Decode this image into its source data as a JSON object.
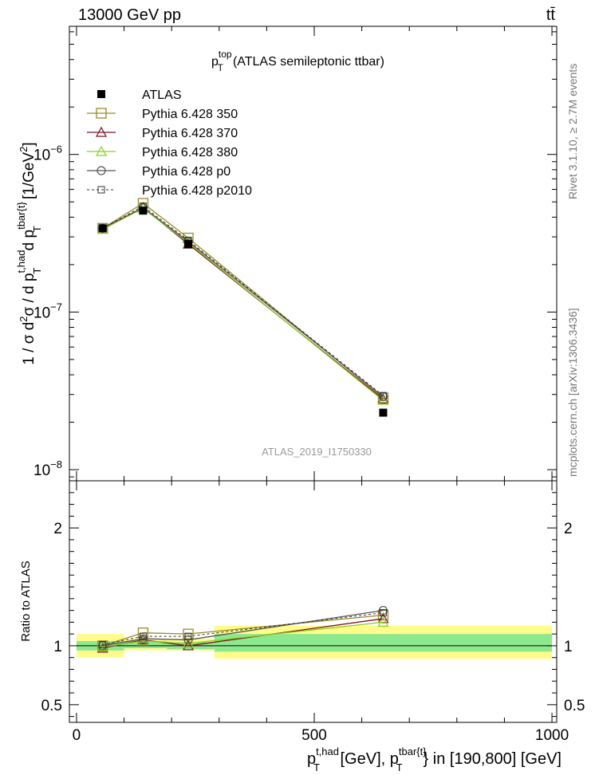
{
  "header": {
    "left_label": "13000 GeV pp",
    "right_label": "tt̄"
  },
  "title": {
    "main": "p",
    "sup": "top",
    "sub": "T",
    "rest": "(ATLAS semileptonic ttbar)"
  },
  "side_labels": {
    "rivet": "Rivet 3.1.10, ≥ 2.7M events",
    "mcplots": "mcplots.cern.ch [arXiv:1306.3436]"
  },
  "watermark": "ATLAS_2019_I1750330",
  "y_label_main": {
    "prefix": "1 / σ d",
    "p1": "2",
    "mid": "σ / d p",
    "sup1": "t,had",
    "sub1": "T",
    "mid2": " d p",
    "sup2": "tbar{t}",
    "sub2": "T",
    "unit": " [1/GeV",
    "unit_sup": "2",
    "unit_end": "]"
  },
  "y_label_ratio": "Ratio to ATLAS",
  "x_label": {
    "a": "p",
    "sup1": "t,had",
    "sub1": "T",
    "b": " [GeV], p",
    "sup2": "tbar{t}",
    "sub2": "T",
    "c": "} in [190,800] [GeV]"
  },
  "colors": {
    "atlas": "#000000",
    "p350": "#9a8a28",
    "p370": "#7a1020",
    "p380": "#88d020",
    "p0": "#555555",
    "p2010": "#333333",
    "band_stat": "#8ee88e",
    "band_total": "#fffc8c"
  },
  "chart_data": [
    {
      "type": "scatter",
      "panel": "main",
      "xlim": [
        -15,
        1010
      ],
      "ylim": [
        8.5e-09,
        6.5e-06
      ],
      "y_scale": "log",
      "y_ticks": [
        {
          "value": 1e-06,
          "base": "10",
          "exp": "−6"
        },
        {
          "value": 1e-07,
          "base": "10",
          "exp": "−7"
        },
        {
          "value": 1e-08,
          "base": "10",
          "exp": "−8"
        }
      ],
      "x": [
        55,
        140,
        235,
        645
      ],
      "series": [
        {
          "name": "ATLAS",
          "key": "atlas",
          "marker": "square-filled",
          "line": "none",
          "values": [
            3.4e-07,
            4.4e-07,
            2.7e-07,
            2.3e-08
          ]
        },
        {
          "name": "Pythia 6.428 350",
          "key": "p350",
          "marker": "square-open",
          "line": "solid",
          "values": [
            3.4e-07,
            4.9e-07,
            2.95e-07,
            2.85e-08
          ]
        },
        {
          "name": "Pythia 6.428 370",
          "key": "p370",
          "marker": "triangle-open",
          "line": "solid",
          "values": [
            3.35e-07,
            4.6e-07,
            2.7e-07,
            2.8e-08
          ]
        },
        {
          "name": "Pythia 6.428 380",
          "key": "p380",
          "marker": "triangle-open",
          "line": "solid",
          "values": [
            3.35e-07,
            4.55e-07,
            2.75e-07,
            2.75e-08
          ]
        },
        {
          "name": "Pythia 6.428 p0",
          "key": "p0",
          "marker": "circle-open",
          "line": "solid",
          "values": [
            3.4e-07,
            4.6e-07,
            2.8e-07,
            2.9e-08
          ]
        },
        {
          "name": "Pythia 6.428 p2010",
          "key": "p2010",
          "marker": "square-open-small",
          "line": "dashed",
          "values": [
            3.4e-07,
            4.7e-07,
            2.85e-07,
            2.95e-08
          ]
        }
      ],
      "legend": "top-left"
    },
    {
      "type": "line",
      "panel": "ratio",
      "xlim": [
        -15,
        1010
      ],
      "ylim": [
        0.35,
        2.4
      ],
      "y_ticks": [
        {
          "value": 2,
          "label": "2"
        },
        {
          "value": 1,
          "label": "1"
        },
        {
          "value": 0.5,
          "label": "0.5"
        }
      ],
      "x_ticks": [
        {
          "value": 0,
          "label": "0"
        },
        {
          "value": 500,
          "label": "500"
        },
        {
          "value": 1000,
          "label": "1000"
        }
      ],
      "bands": [
        {
          "x_from": 0,
          "x_to": 100,
          "total": [
            0.9,
            1.1
          ],
          "stat": [
            0.96,
            1.04
          ]
        },
        {
          "x_from": 100,
          "x_to": 190,
          "total": [
            0.96,
            1.06
          ],
          "stat": [
            0.98,
            1.04
          ]
        },
        {
          "x_from": 190,
          "x_to": 290,
          "total": [
            0.96,
            1.06
          ],
          "stat": [
            0.97,
            1.03
          ]
        },
        {
          "x_from": 290,
          "x_to": 1000,
          "total": [
            0.89,
            1.17
          ],
          "stat": [
            0.95,
            1.1
          ]
        }
      ],
      "x": [
        55,
        140,
        235,
        645
      ],
      "series": [
        {
          "name": "Pythia 6.428 350",
          "key": "p350",
          "values": [
            1.0,
            1.11,
            1.1,
            1.26
          ]
        },
        {
          "name": "Pythia 6.428 370",
          "key": "p370",
          "values": [
            0.98,
            1.05,
            1.0,
            1.23
          ]
        },
        {
          "name": "Pythia 6.428 380",
          "key": "p380",
          "values": [
            0.99,
            1.04,
            1.02,
            1.2
          ]
        },
        {
          "name": "Pythia 6.428 p0",
          "key": "p0",
          "values": [
            1.0,
            1.06,
            1.05,
            1.3
          ]
        },
        {
          "name": "Pythia 6.428 p2010",
          "key": "p2010",
          "values": [
            1.01,
            1.08,
            1.08,
            1.28
          ]
        }
      ]
    }
  ]
}
